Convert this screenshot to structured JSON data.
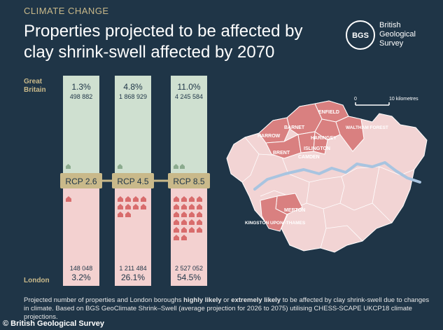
{
  "header": {
    "kicker": "CLIMATE CHANGE",
    "title": "Properties projected to be affected by clay shrink-swell affected by 2070"
  },
  "logo": {
    "mark": "BGS",
    "name_line1": "British",
    "name_line2": "Geological",
    "name_line3": "Survey"
  },
  "labels": {
    "gb_line1": "Great",
    "gb_line2": "Britain",
    "london": "London"
  },
  "chart_data": {
    "type": "bar",
    "categories": [
      "RCP 2.6",
      "RCP 4.5",
      "RCP 8.5"
    ],
    "series": [
      {
        "name": "Great Britain",
        "percent_labels": [
          "1.3%",
          "4.8%",
          "11.0%"
        ],
        "count_labels": [
          "498 882",
          "1 868 929",
          "4 245 584"
        ],
        "values": [
          498882,
          1868929,
          4245584
        ],
        "percent": [
          1.3,
          4.8,
          11.0
        ]
      },
      {
        "name": "London",
        "percent_labels": [
          "3.2%",
          "26.1%",
          "54.5%"
        ],
        "count_labels": [
          "148 048",
          "1 211 484",
          "2 527 052"
        ],
        "values": [
          148048,
          1211484,
          2527052
        ],
        "percent": [
          3.2,
          26.1,
          54.5
        ]
      }
    ],
    "colors": {
      "gb": "#cfe0d0",
      "london": "#f3d1d0",
      "rcp": "#c9b98a",
      "house_gb": "#8bab8e",
      "house_ldn": "#d86c6c"
    }
  },
  "map": {
    "scale_start": "0",
    "scale_end": "10 kilometres",
    "boroughs": [
      "ENFIELD",
      "BARNET",
      "HARROW",
      "HARINGEY",
      "WALTHAM FOREST",
      "BRENT",
      "ISLINGTON",
      "CAMDEN",
      "MERTON",
      "KINGSTON UPON -THAMES"
    ],
    "colors": {
      "base": "#f2d4d4",
      "highlight": "#d98080",
      "river": "#a8c4e0",
      "border": "#ffffff"
    }
  },
  "footnote": {
    "before": "Projected number of properties and London boroughs ",
    "bold1": "highly likely",
    "middle": " or ",
    "bold2": "extremely likely",
    "after": " to be affected by clay shrink-swell due to changes in climate. Based on BGS GeoClimate Shrink–Swell (average projection for 2026 to 2075) utilising CHESS-SCAPE UKCP18 climate projections."
  },
  "credit": "© British Geological Survey"
}
